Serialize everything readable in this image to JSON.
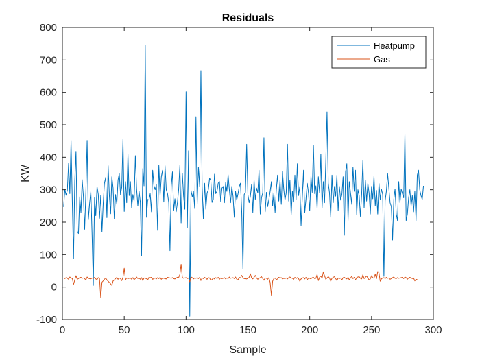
{
  "chart_data": {
    "type": "line",
    "title": "Residuals",
    "xlabel": "Sample",
    "ylabel": "KW",
    "xlim": [
      0,
      300
    ],
    "ylim": [
      -100,
      800
    ],
    "xticks": [
      0,
      50,
      100,
      150,
      200,
      250,
      300
    ],
    "yticks": [
      -100,
      0,
      100,
      200,
      300,
      400,
      500,
      600,
      700,
      800
    ],
    "grid": false,
    "legend_position": "top-right",
    "series": [
      {
        "name": "Heatpump",
        "color": "#0072BD",
        "x_start": 1,
        "x_step": 1,
        "values": [
          247,
          301,
          283,
          298,
          381,
          288,
          452,
          265,
          88,
          328,
          418,
          172,
          165,
          278,
          230,
          331,
          279,
          178,
          294,
          452,
          208,
          258,
          295,
          162,
          5,
          275,
          220,
          310,
          286,
          212,
          283,
          170,
          258,
          320,
          338,
          214,
          374,
          280,
          226,
          340,
          305,
          210,
          285,
          255,
          330,
          350,
          285,
          308,
          455,
          233,
          325,
          260,
          410,
          282,
          325,
          245,
          285,
          265,
          405,
          303,
          250,
          296,
          262,
          96,
          365,
          312,
          745,
          215,
          270,
          268,
          288,
          232,
          360,
          313,
          300,
          316,
          175,
          375,
          282,
          340,
          360,
          262,
          374,
          300,
          288,
          260,
          112,
          310,
          355,
          236,
          272,
          232,
          260,
          300,
          375,
          198,
          350,
          280,
          240,
          602,
          182,
          420,
          -90,
          298,
          278,
          295,
          242,
          525,
          255,
          370,
          310,
          667,
          310,
          210,
          320,
          240,
          290,
          300,
          335,
          330,
          261,
          270,
          348,
          288,
          295,
          320,
          325,
          264,
          305,
          310,
          260,
          322,
          295,
          346,
          300,
          260,
          310,
          280,
          215,
          295,
          268,
          287,
          310,
          320,
          235,
          56,
          285,
          292,
          440,
          285,
          260,
          280,
          317,
          230,
          330,
          270,
          305,
          290,
          360,
          225,
          275,
          290,
          460,
          232,
          292,
          248,
          270,
          295,
          325,
          250,
          290,
          230,
          300,
          345,
          265,
          330,
          255,
          356,
          302,
          268,
          290,
          440,
          265,
          330,
          222,
          295,
          262,
          345,
          270,
          380,
          282,
          310,
          190,
          275,
          360,
          230,
          272,
          320,
          290,
          235,
          342,
          292,
          436,
          288,
          312,
          242,
          340,
          290,
          410,
          243,
          325,
          260,
          385,
          540,
          320,
          290,
          215,
          345,
          260,
          310,
          280,
          345,
          235,
          310,
          268,
          285,
          340,
          160,
          355,
          380,
          205,
          325,
          290,
          255,
          370,
          295,
          360,
          222,
          300,
          282,
          218,
          285,
          390,
          245,
          330,
          265,
          320,
          290,
          225,
          310,
          272,
          342,
          250,
          298,
          225,
          320,
          270,
          302,
          285,
          33,
          266,
          295,
          350,
          305,
          260,
          248,
          145,
          270,
          302,
          225,
          205,
          325,
          260,
          302,
          288,
          275,
          472,
          205,
          225,
          275,
          300,
          250,
          282,
          232,
          295,
          205,
          345,
          360,
          300,
          282,
          270,
          312
        ]
      },
      {
        "name": "Gas",
        "color": "#D95319",
        "x_start": 1,
        "x_step": 1,
        "values": [
          28,
          26,
          29,
          27,
          24,
          31,
          27,
          27,
          8,
          22,
          35,
          24,
          26,
          29,
          30,
          27,
          28,
          26,
          22,
          31,
          27,
          26,
          25,
          28,
          26,
          30,
          25,
          23,
          29,
          27,
          -32,
          15,
          19,
          24,
          28,
          22,
          18,
          14,
          10,
          5,
          19,
          22,
          26,
          30,
          24,
          28,
          26,
          20,
          30,
          58,
          22,
          28,
          26,
          27,
          28,
          24,
          29,
          23,
          26,
          31,
          26,
          28,
          24,
          29,
          20,
          28,
          27,
          26,
          22,
          30,
          29,
          30,
          24,
          26,
          28,
          25,
          29,
          26,
          30,
          24,
          28,
          27,
          26,
          25,
          30,
          29,
          28,
          27,
          29,
          26,
          25,
          28,
          30,
          29,
          39,
          70,
          30,
          27,
          28,
          29,
          26,
          28,
          16,
          31,
          29,
          25,
          28,
          27,
          29,
          26,
          30,
          20,
          28,
          26,
          30,
          27,
          24,
          29,
          28,
          21,
          23,
          28,
          25,
          29,
          26,
          30,
          24,
          28,
          26,
          27,
          29,
          25,
          28,
          26,
          31,
          27,
          28,
          29,
          26,
          31,
          24,
          22,
          30,
          28,
          36,
          29,
          26,
          26,
          25,
          27,
          30,
          41,
          28,
          25,
          30,
          36,
          28,
          24,
          27,
          29,
          32,
          26,
          21,
          28,
          27,
          24,
          29,
          14,
          -25,
          18,
          26,
          28,
          23,
          25,
          30,
          28,
          29,
          25,
          27,
          26,
          28,
          25,
          29,
          31,
          28,
          27,
          24,
          30,
          26,
          29,
          26,
          18,
          25,
          28,
          29,
          25,
          30,
          22,
          28,
          27,
          25,
          29,
          30,
          26,
          27,
          39,
          20,
          30,
          34,
          27,
          47,
          35,
          24,
          28,
          32,
          28,
          18,
          27,
          30,
          32,
          26,
          20,
          28,
          26,
          28,
          22,
          29,
          30,
          27,
          25,
          30,
          22,
          28,
          33,
          26,
          30,
          22,
          29,
          31,
          32,
          27,
          25,
          38,
          26,
          30,
          34,
          28,
          22,
          25,
          35,
          29,
          27,
          40,
          26,
          48,
          44,
          18,
          25,
          28,
          29,
          26,
          30,
          27,
          28,
          24,
          26,
          29,
          31,
          27,
          26,
          29,
          27,
          28,
          29,
          30,
          26,
          31,
          29,
          24,
          28,
          30,
          28,
          26,
          28,
          19,
          24,
          23
        ]
      }
    ]
  }
}
